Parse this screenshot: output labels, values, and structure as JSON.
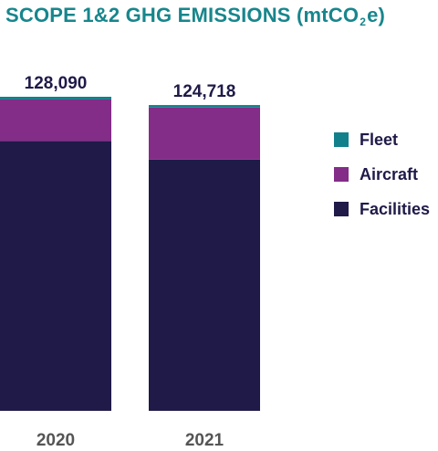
{
  "title": {
    "main": "SCOPE 1&2 GHG EMISSIONS (mtCO",
    "subscript": "2",
    "suffix": "e)",
    "color": "#17868c"
  },
  "colors": {
    "text": "#1f1a48",
    "axis_label": "#555555"
  },
  "legend": [
    {
      "label": "Fleet",
      "color": "#12808a"
    },
    {
      "label": "Aircraft",
      "color": "#832c88"
    },
    {
      "label": "Facilities",
      "color": "#1f1a48"
    }
  ],
  "chart_data": {
    "type": "bar",
    "stacked": true,
    "title": "SCOPE 1&2 GHG EMISSIONS (mtCO2e)",
    "categories": [
      "2020",
      "2021"
    ],
    "totals": [
      128090,
      124718
    ],
    "total_labels": [
      "128,090",
      "124,718"
    ],
    "series": [
      {
        "name": "Facilities",
        "color": "#1f1a48",
        "values": [
          110000,
          102500
        ]
      },
      {
        "name": "Aircraft",
        "color": "#832c88",
        "values": [
          17000,
          21200
        ]
      },
      {
        "name": "Fleet",
        "color": "#12808a",
        "values": [
          1090,
          1018
        ]
      }
    ],
    "xlabel": "",
    "ylabel": "",
    "ylim": [
      0,
      128090
    ],
    "legend_position": "right",
    "grid": false
  }
}
